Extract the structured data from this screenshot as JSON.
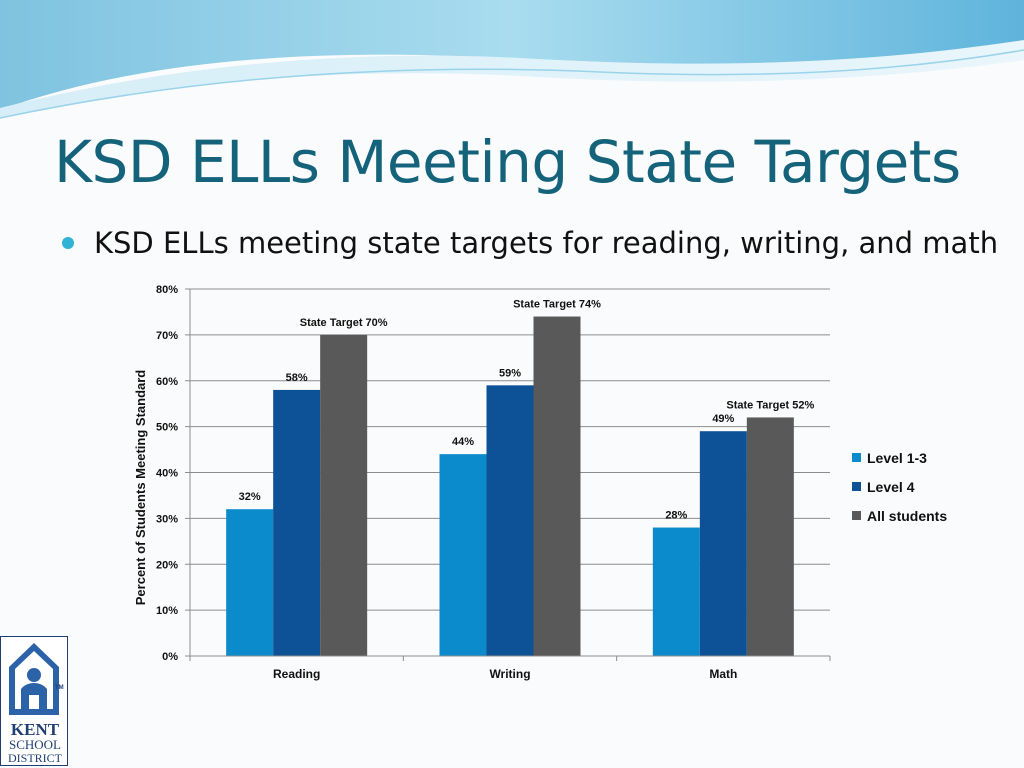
{
  "slide": {
    "title": "KSD ELLs Meeting State Targets",
    "bullet": "KSD ELLs meeting state targets for reading, writing, and math"
  },
  "logo": {
    "line1": "KENT",
    "line2": "SCHOOL",
    "line3": "DISTRICT",
    "tm": "TM"
  },
  "chart_data": {
    "type": "bar",
    "title": "",
    "xlabel": "",
    "ylabel": "Percent of Students Meeting Standard",
    "ylim": [
      0,
      80
    ],
    "y_ticks": [
      "0%",
      "10%",
      "20%",
      "30%",
      "40%",
      "50%",
      "60%",
      "70%",
      "80%"
    ],
    "categories": [
      "Reading",
      "Writing",
      "Math"
    ],
    "series": [
      {
        "name": "Level 1-3",
        "values": [
          32,
          44,
          28
        ],
        "color": "#0b8bcc",
        "labels": [
          "32%",
          "44%",
          "28%"
        ]
      },
      {
        "name": "Level 4",
        "values": [
          58,
          59,
          49
        ],
        "color": "#0d5196",
        "labels": [
          "58%",
          "59%",
          "49%"
        ]
      },
      {
        "name": "All students",
        "values": [
          70,
          74,
          52
        ],
        "color": "#595959",
        "labels": [
          "State Target 70%",
          "State Target 74%",
          "State Target 52%"
        ]
      }
    ],
    "grid": true,
    "legend": "right"
  }
}
